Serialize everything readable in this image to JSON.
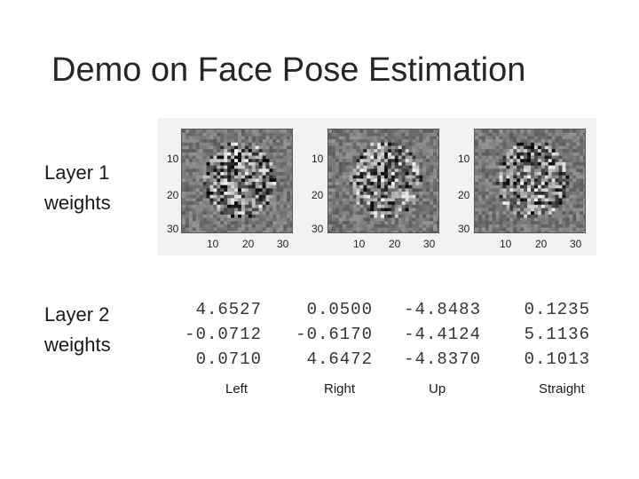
{
  "slide": {
    "title": "Demo on Face Pose Estimation",
    "layer1_label": [
      "Layer 1",
      "weights"
    ],
    "layer2_label": [
      "Layer 2",
      "weights"
    ]
  },
  "layer1_plots": [
    {
      "y_ticks": [
        "10",
        "20",
        "30"
      ],
      "x_ticks": [
        "10",
        "20",
        "30"
      ]
    },
    {
      "y_ticks": [
        "10",
        "20",
        "30"
      ],
      "x_ticks": [
        "10",
        "20",
        "30"
      ]
    },
    {
      "y_ticks": [
        "10",
        "20",
        "30"
      ],
      "x_ticks": [
        "10",
        "20",
        "30"
      ]
    }
  ],
  "layer2_weights": [
    [
      "4.6527",
      "-0.0712",
      "0.0710"
    ],
    [
      "0.0500",
      "-0.6170",
      "4.6472"
    ],
    [
      "-4.8483",
      "-4.4124",
      "-4.8370"
    ],
    [
      "0.1235",
      "5.1136",
      "0.1013"
    ]
  ],
  "outputs": [
    "Left",
    "Right",
    "Up",
    "Straight"
  ]
}
